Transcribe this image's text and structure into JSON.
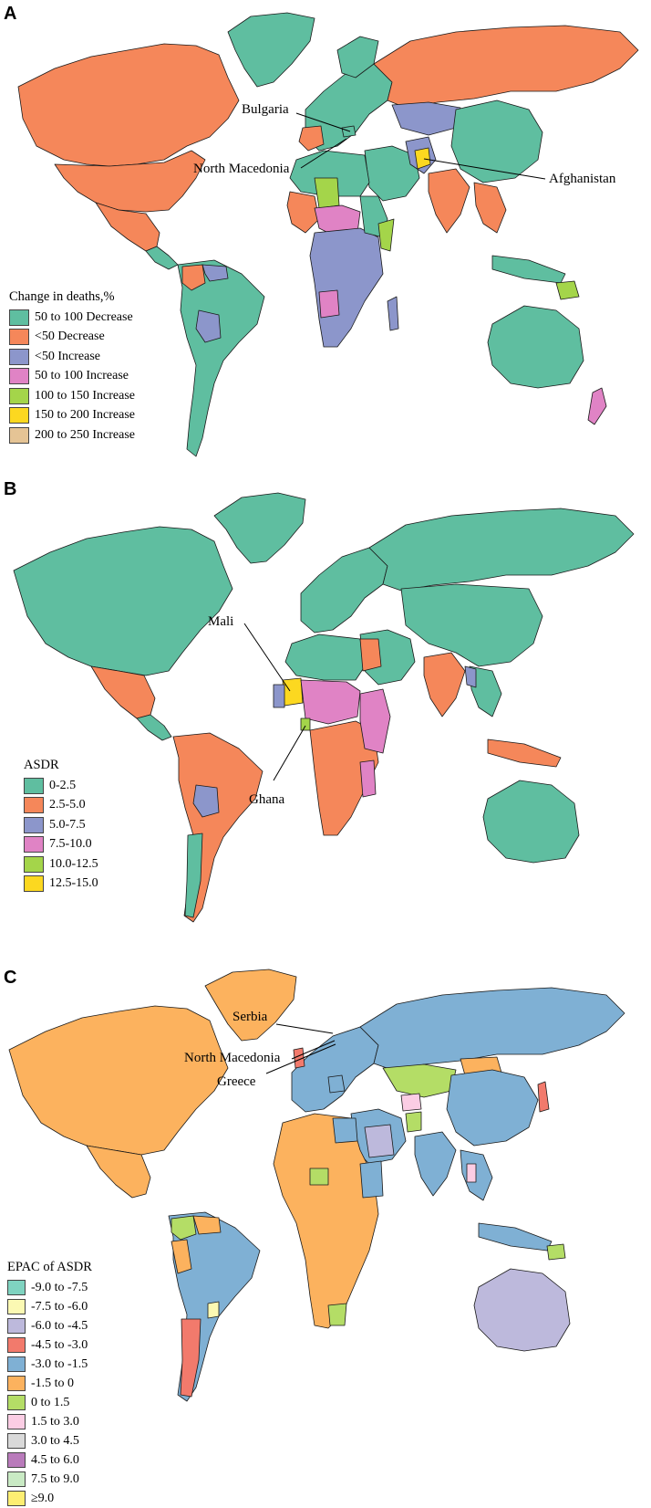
{
  "panels": [
    {
      "letter": "A",
      "legend_title": "Change in deaths,%",
      "legend": [
        {
          "label": "50 to 100 Decrease",
          "color": "#5fbea0"
        },
        {
          "label": "<50 Decrease",
          "color": "#f5875a"
        },
        {
          "label": "<50 Increase",
          "color": "#8c96cb"
        },
        {
          "label": "50 to 100 Increase",
          "color": "#e083c5"
        },
        {
          "label": "100 to 150 Increase",
          "color": "#a4d54a"
        },
        {
          "label": "150 to 200 Increase",
          "color": "#fcd820"
        },
        {
          "label": "200 to 250 Increase",
          "color": "#e5c495"
        }
      ],
      "callouts": [
        "Bulgaria",
        "North Macedonia",
        "Afghanistan"
      ]
    },
    {
      "letter": "B",
      "legend_title": "ASDR",
      "legend": [
        {
          "label": "0-2.5",
          "color": "#5fbea0"
        },
        {
          "label": "2.5-5.0",
          "color": "#f5875a"
        },
        {
          "label": "5.0-7.5",
          "color": "#8c96cb"
        },
        {
          "label": "7.5-10.0",
          "color": "#e083c5"
        },
        {
          "label": "10.0-12.5",
          "color": "#a4d54a"
        },
        {
          "label": "12.5-15.0",
          "color": "#fcd820"
        }
      ],
      "callouts": [
        "Mali",
        "Ghana"
      ]
    },
    {
      "letter": "C",
      "legend_title": "EPAC of ASDR",
      "legend": [
        {
          "label": "-9.0 to -7.5",
          "color": "#7fd3c0"
        },
        {
          "label": "-7.5 to -6.0",
          "color": "#fbf9b3"
        },
        {
          "label": "-6.0 to -4.5",
          "color": "#bdb9dc"
        },
        {
          "label": "-4.5 to -3.0",
          "color": "#f27a6c"
        },
        {
          "label": "-3.0 to -1.5",
          "color": "#7fb0d4"
        },
        {
          "label": "-1.5 to 0",
          "color": "#fcb25e"
        },
        {
          "label": "0 to 1.5",
          "color": "#b4dd66"
        },
        {
          "label": "1.5 to 3.0",
          "color": "#fbcde4"
        },
        {
          "label": "3.0 to 4.5",
          "color": "#d9d9d9"
        },
        {
          "label": "4.5 to 6.0",
          "color": "#b97bbb"
        },
        {
          "label": "7.5 to 9.0",
          "color": "#c9eac4"
        },
        {
          "label": "≥9.0",
          "color": "#fdee72"
        }
      ],
      "callouts": [
        "Serbia",
        "North Macedonia",
        "Greece"
      ]
    }
  ]
}
